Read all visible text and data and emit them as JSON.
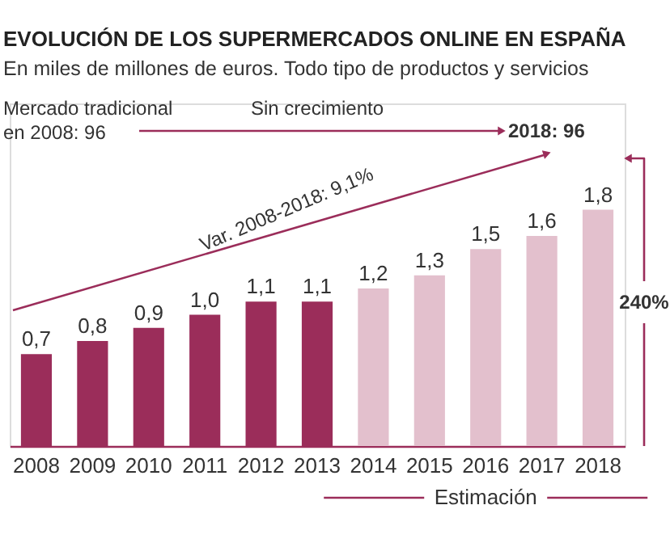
{
  "chart_data": {
    "type": "bar",
    "title": "EVOLUCIÓN DE LOS SUPERMERCADOS ONLINE EN ESPAÑA",
    "subtitle": "En miles de millones de euros. Todo tipo de productos y servicios",
    "categories": [
      "2008",
      "2009",
      "2010",
      "2011",
      "2012",
      "2013",
      "2014",
      "2015",
      "2016",
      "2017",
      "2018"
    ],
    "values": [
      0.7,
      0.8,
      0.9,
      1.0,
      1.1,
      1.1,
      1.2,
      1.3,
      1.5,
      1.6,
      1.8
    ],
    "value_labels": [
      "0,7",
      "0,8",
      "0,9",
      "1,0",
      "1,1",
      "1,1",
      "1,2",
      "1,3",
      "1,5",
      "1,6",
      "1,8"
    ],
    "colors": [
      "#9b2d5a",
      "#9b2d5a",
      "#9b2d5a",
      "#9b2d5a",
      "#9b2d5a",
      "#9b2d5a",
      "#e3c0cd",
      "#e3c0cd",
      "#e3c0cd",
      "#e3c0cd",
      "#e3c0cd"
    ],
    "annotations": [
      "Mercado tradicional en 2008: 96",
      "Sin crecimiento",
      "2018: 96",
      "Var. 2008-2018: 9,1%",
      "240%",
      "Estimación"
    ]
  }
}
